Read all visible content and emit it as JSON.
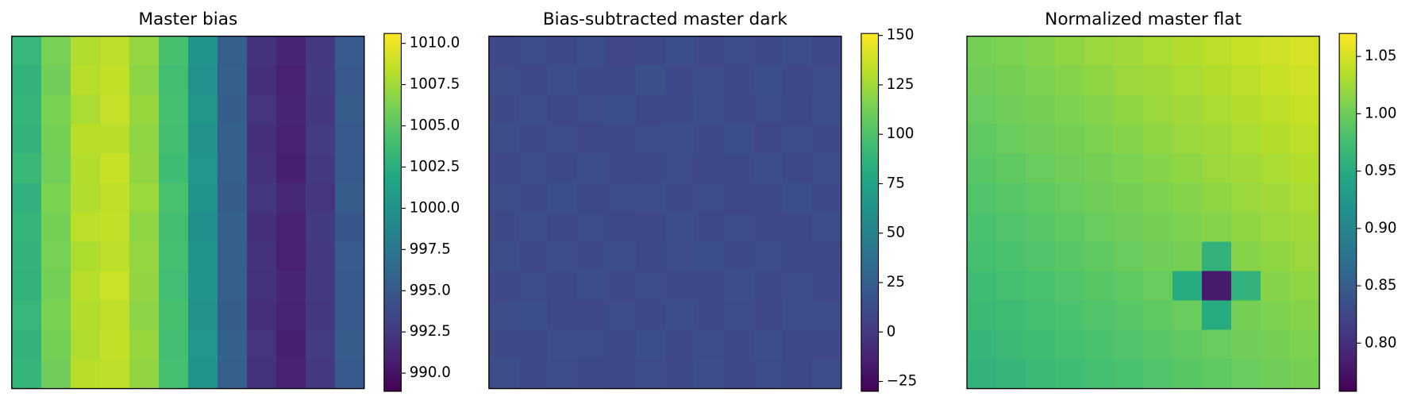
{
  "chart_data": [
    {
      "type": "heatmap",
      "title": "Master bias",
      "colormap": "viridis",
      "clim": [
        988.9,
        1010.6
      ],
      "colorbar_ticks": [
        {
          "value": 990,
          "label": "990.0"
        },
        992.5,
        {
          "value": 995,
          "label": "995.0"
        },
        997.5,
        {
          "value": 1000,
          "label": "1000.0"
        },
        1002.5,
        {
          "value": 1005,
          "label": "1005.0"
        },
        1007.5,
        {
          "value": 1010,
          "label": "1010.0"
        }
      ],
      "z": [
        [
          1003.2,
          1006.1,
          1008.0,
          1008.4,
          1007.1,
          1004.2,
          1000.1,
          995.4,
          992.1,
          991.2,
          992.4,
          995.1
        ],
        [
          1002.9,
          1005.8,
          1008.2,
          1008.6,
          1006.8,
          1003.9,
          999.8,
          995.7,
          991.9,
          990.9,
          992.6,
          994.8
        ],
        [
          1003.1,
          1006.2,
          1007.8,
          1008.7,
          1007.2,
          1004.1,
          1000.3,
          995.3,
          992.2,
          991.1,
          992.3,
          995.2
        ],
        [
          1003.0,
          1006.0,
          1008.3,
          1008.3,
          1006.9,
          1004.0,
          999.9,
          995.6,
          991.8,
          991.0,
          992.7,
          994.9
        ],
        [
          1003.3,
          1005.9,
          1008.1,
          1008.8,
          1007.0,
          1003.8,
          1000.2,
          995.5,
          992.0,
          990.8,
          992.5,
          995.0
        ],
        [
          1002.8,
          1006.3,
          1008.0,
          1008.5,
          1007.3,
          1004.3,
          1000.0,
          995.2,
          992.3,
          991.3,
          992.2,
          995.3
        ],
        [
          1003.1,
          1006.0,
          1008.4,
          1008.6,
          1006.9,
          1004.0,
          999.7,
          995.6,
          991.9,
          991.0,
          992.6,
          994.7
        ],
        [
          1003.0,
          1006.1,
          1007.9,
          1008.4,
          1007.1,
          1004.1,
          1000.1,
          995.4,
          992.1,
          990.9,
          992.4,
          995.1
        ],
        [
          1002.9,
          1005.9,
          1008.2,
          1008.9,
          1007.0,
          1003.9,
          1000.0,
          995.5,
          992.0,
          991.2,
          992.5,
          995.0
        ],
        [
          1003.2,
          1006.2,
          1008.1,
          1008.5,
          1006.8,
          1004.2,
          999.9,
          995.3,
          991.8,
          991.1,
          992.3,
          994.9
        ],
        [
          1003.0,
          1006.0,
          1008.0,
          1008.6,
          1007.2,
          1004.0,
          1000.2,
          995.7,
          992.2,
          990.8,
          992.7,
          995.2
        ],
        [
          1003.1,
          1005.8,
          1008.3,
          1008.4,
          1007.0,
          1004.1,
          1000.0,
          995.4,
          992.0,
          991.0,
          992.4,
          995.0
        ]
      ]
    },
    {
      "type": "heatmap",
      "title": "Bias-subtracted master dark",
      "colormap": "viridis",
      "clim": [
        -30,
        151
      ],
      "colorbar_ticks": [
        {
          "value": -25,
          "label": "−25"
        },
        0,
        25,
        50,
        75,
        100,
        125,
        150
      ],
      "z": [
        [
          9,
          11,
          10,
          12,
          8,
          10,
          13,
          9,
          11,
          10,
          12,
          9
        ],
        [
          11,
          9,
          12,
          10,
          10,
          14,
          9,
          11,
          10,
          13,
          9,
          11
        ],
        [
          10,
          12,
          9,
          11,
          13,
          9,
          10,
          12,
          9,
          11,
          10,
          12
        ],
        [
          12,
          10,
          11,
          9,
          10,
          11,
          12,
          10,
          13,
          9,
          11,
          10
        ],
        [
          9,
          11,
          10,
          12,
          9,
          10,
          11,
          9,
          10,
          12,
          10,
          11
        ],
        [
          11,
          10,
          13,
          10,
          11,
          12,
          10,
          11,
          9,
          10,
          13,
          9
        ],
        [
          10,
          12,
          9,
          11,
          10,
          9,
          12,
          10,
          11,
          10,
          9,
          12
        ],
        [
          12,
          9,
          11,
          10,
          12,
          10,
          11,
          13,
          10,
          11,
          10,
          10
        ],
        [
          9,
          11,
          10,
          12,
          9,
          11,
          10,
          9,
          12,
          10,
          11,
          9
        ],
        [
          11,
          13,
          10,
          9,
          11,
          10,
          12,
          10,
          11,
          9,
          12,
          11
        ],
        [
          10,
          9,
          12,
          11,
          10,
          13,
          9,
          11,
          10,
          12,
          10,
          9
        ],
        [
          12,
          10,
          11,
          10,
          9,
          11,
          10,
          12,
          9,
          11,
          10,
          12
        ]
      ]
    },
    {
      "type": "heatmap",
      "title": "Normalized master flat",
      "colormap": "viridis",
      "clim": [
        0.758,
        1.07
      ],
      "colorbar_ticks": [
        {
          "value": 0.8,
          "label": "0.80"
        },
        0.85,
        {
          "value": 0.9,
          "label": "0.90"
        },
        0.95,
        {
          "value": 1,
          "label": "1.00"
        },
        1.05
      ],
      "z": [
        [
          1.005,
          1.009,
          1.013,
          1.017,
          1.022,
          1.026,
          1.03,
          1.034,
          1.038,
          1.043,
          1.047,
          1.051
        ],
        [
          1.001,
          1.005,
          1.009,
          1.013,
          1.017,
          1.022,
          1.026,
          1.03,
          1.034,
          1.038,
          1.043,
          1.047
        ],
        [
          0.997,
          1.001,
          1.005,
          1.009,
          1.013,
          1.017,
          1.022,
          1.026,
          1.03,
          1.034,
          1.038,
          1.043
        ],
        [
          0.992,
          0.997,
          1.001,
          1.005,
          1.009,
          1.013,
          1.017,
          1.022,
          1.026,
          1.03,
          1.034,
          1.038
        ],
        [
          0.988,
          0.992,
          0.997,
          1.001,
          1.005,
          1.009,
          1.013,
          1.017,
          1.022,
          1.026,
          1.03,
          1.034
        ],
        [
          0.984,
          0.988,
          0.992,
          0.997,
          1.001,
          1.005,
          1.009,
          1.013,
          1.017,
          1.022,
          1.026,
          1.03
        ],
        [
          0.98,
          0.984,
          0.988,
          0.992,
          0.997,
          1.001,
          1.005,
          1.009,
          1.013,
          1.017,
          1.022,
          1.026
        ],
        [
          0.976,
          0.98,
          0.984,
          0.988,
          0.992,
          0.997,
          1.001,
          1.005,
          0.96,
          1.013,
          1.017,
          1.022
        ],
        [
          0.972,
          0.976,
          0.98,
          0.984,
          0.988,
          0.992,
          0.997,
          0.95,
          0.78,
          0.96,
          1.013,
          1.017
        ],
        [
          0.968,
          0.972,
          0.976,
          0.98,
          0.984,
          0.988,
          0.992,
          0.997,
          0.95,
          1.005,
          1.009,
          1.013
        ],
        [
          0.963,
          0.968,
          0.972,
          0.976,
          0.98,
          0.984,
          0.988,
          0.992,
          0.997,
          1.001,
          1.005,
          1.009
        ],
        [
          0.959,
          0.963,
          0.968,
          0.972,
          0.976,
          0.98,
          0.984,
          0.988,
          0.992,
          0.997,
          1.001,
          1.005
        ]
      ]
    }
  ]
}
